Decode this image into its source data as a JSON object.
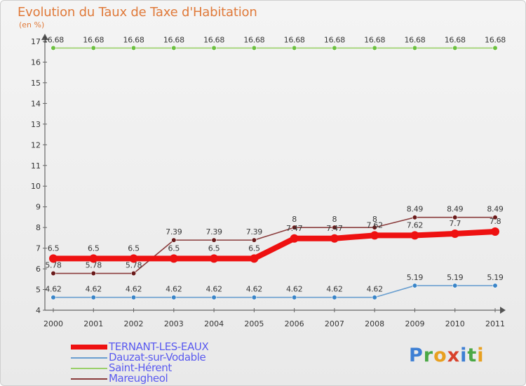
{
  "title": "Evolution du Taux de Taxe d'Habitation",
  "unit_label": "(en %)",
  "brand": {
    "letters": [
      {
        "ch": "P",
        "color": "#3d7fd4"
      },
      {
        "ch": "r",
        "color": "#4aa845"
      },
      {
        "ch": "o",
        "color": "#e8a020"
      },
      {
        "ch": "x",
        "color": "#d8402a"
      },
      {
        "ch": "i",
        "color": "#3d7fd4"
      },
      {
        "ch": "t",
        "color": "#4aa845"
      },
      {
        "ch": "i",
        "color": "#e8a020"
      }
    ]
  },
  "chart_data": {
    "type": "line",
    "title": "Evolution du Taux de Taxe d'Habitation",
    "ylabel": "(en %)",
    "xlabel": "",
    "categories": [
      "2000",
      "2001",
      "2002",
      "2003",
      "2004",
      "2005",
      "2006",
      "2007",
      "2008",
      "2009",
      "2010",
      "2011"
    ],
    "ylim": [
      4,
      17
    ],
    "yticks": [
      4,
      5,
      6,
      7,
      8,
      9,
      10,
      11,
      12,
      13,
      14,
      15,
      16,
      17
    ],
    "grid": false,
    "legend_position": "bottom-left",
    "series": [
      {
        "name": "TERNANT-LES-EAUX",
        "color": "#ee1111",
        "style": "thick",
        "values": [
          6.5,
          6.5,
          6.5,
          6.5,
          6.5,
          6.5,
          7.47,
          7.47,
          7.62,
          7.62,
          7.7,
          7.8
        ],
        "labels": [
          "6.5",
          "6.5",
          "6.5",
          "6.5",
          "6.5",
          "6.5",
          "7.47",
          "7.47",
          "7.62",
          "7.62",
          "7.7",
          "7.8"
        ]
      },
      {
        "name": "Dauzat-sur-Vodable",
        "color": "#6a9fd0",
        "marker": "#3a85c8",
        "style": "thin",
        "values": [
          4.62,
          4.62,
          4.62,
          4.62,
          4.62,
          4.62,
          4.62,
          4.62,
          4.62,
          5.19,
          5.19,
          5.19
        ],
        "labels": [
          "4.62",
          "4.62",
          "4.62",
          "4.62",
          "4.62",
          "4.62",
          "4.62",
          "4.62",
          "4.62",
          "5.19",
          "5.19",
          "5.19"
        ]
      },
      {
        "name": "Saint-Hérent",
        "color": "#9ad06a",
        "marker": "#6cc040",
        "style": "thin",
        "values": [
          16.68,
          16.68,
          16.68,
          16.68,
          16.68,
          16.68,
          16.68,
          16.68,
          16.68,
          16.68,
          16.68,
          16.68
        ],
        "labels": [
          "16.68",
          "16.68",
          "16.68",
          "16.68",
          "16.68",
          "16.68",
          "16.68",
          "16.68",
          "16.68",
          "16.68",
          "16.68",
          "16.68"
        ]
      },
      {
        "name": "Mareugheol",
        "color": "#8a3c3c",
        "marker": "#6a1a1a",
        "style": "thin",
        "values": [
          5.78,
          5.78,
          5.78,
          7.39,
          7.39,
          7.39,
          8,
          8,
          8,
          8.49,
          8.49,
          8.49
        ],
        "labels": [
          "5.78",
          "5.78",
          "5.78",
          "7.39",
          "7.39",
          "7.39",
          "8",
          "8",
          "8",
          "8.49",
          "8.49",
          "8.49"
        ]
      }
    ]
  }
}
